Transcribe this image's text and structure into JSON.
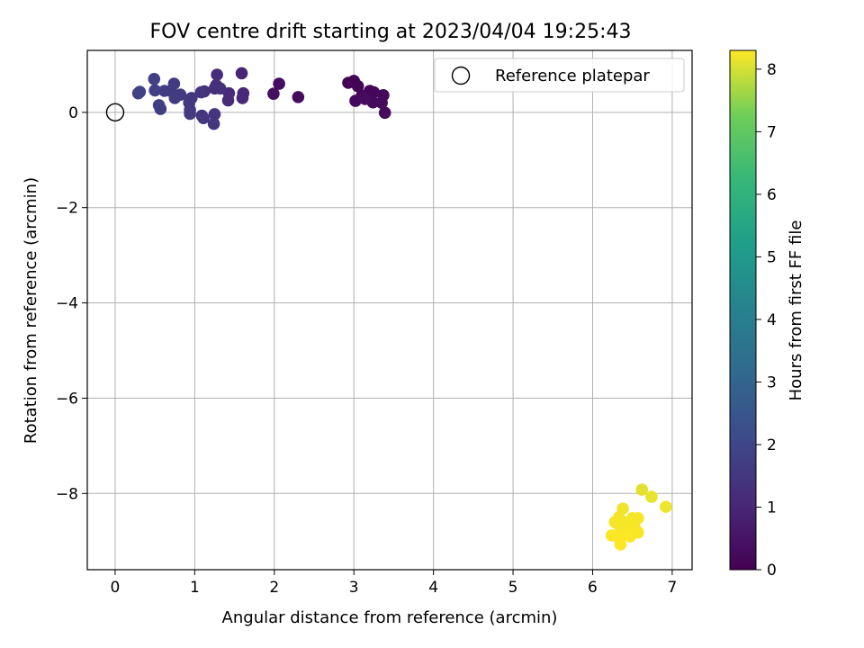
{
  "chart_data": {
    "type": "scatter",
    "title": "FOV centre drift starting at 2023/04/04 19:25:43",
    "xlabel": "Angular distance from reference (arcmin)",
    "ylabel": "Rotation from reference (arcmin)",
    "xlim": [
      -0.35,
      7.25
    ],
    "ylim": [
      -9.6,
      1.3
    ],
    "xticks": [
      0,
      1,
      2,
      3,
      4,
      5,
      6,
      7
    ],
    "yticks": [
      0,
      -2,
      -4,
      -6,
      -8
    ],
    "xtick_labels": [
      "0",
      "1",
      "2",
      "3",
      "4",
      "5",
      "6",
      "7"
    ],
    "ytick_labels": [
      "0",
      "−2",
      "−4",
      "−6",
      "−8"
    ],
    "grid": true,
    "legend": {
      "position": "top-right",
      "label": "Reference platepar"
    },
    "reference_point": {
      "x": 0,
      "y": 0
    },
    "colorbar": {
      "label": "Hours from first FF file",
      "range": [
        0,
        8.3
      ],
      "ticks": [
        0,
        1,
        2,
        3,
        4,
        5,
        6,
        7,
        8
      ],
      "tick_labels": [
        "0",
        "1",
        "2",
        "3",
        "4",
        "5",
        "6",
        "7",
        "8"
      ],
      "colormap": "viridis"
    },
    "points": [
      {
        "x": 2.93,
        "y": 0.62,
        "c": 0.05
      },
      {
        "x": 3.0,
        "y": 0.66,
        "c": 0.07
      },
      {
        "x": 3.05,
        "y": 0.55,
        "c": 0.1
      },
      {
        "x": 3.2,
        "y": 0.45,
        "c": 0.12
      },
      {
        "x": 3.25,
        "y": 0.42,
        "c": 0.14
      },
      {
        "x": 3.1,
        "y": 0.35,
        "c": 0.16
      },
      {
        "x": 3.37,
        "y": 0.36,
        "c": 0.18
      },
      {
        "x": 3.02,
        "y": 0.24,
        "c": 0.2
      },
      {
        "x": 3.24,
        "y": 0.21,
        "c": 0.22
      },
      {
        "x": 3.35,
        "y": 0.2,
        "c": 0.24
      },
      {
        "x": 3.39,
        "y": -0.01,
        "c": 0.26
      },
      {
        "x": 3.14,
        "y": 0.28,
        "c": 0.28
      },
      {
        "x": 2.3,
        "y": 0.32,
        "c": 0.3
      },
      {
        "x": 2.06,
        "y": 0.6,
        "c": 0.35
      },
      {
        "x": 1.99,
        "y": 0.39,
        "c": 0.4
      },
      {
        "x": 1.59,
        "y": 0.82,
        "c": 0.95
      },
      {
        "x": 1.61,
        "y": 0.4,
        "c": 1.0
      },
      {
        "x": 1.6,
        "y": 0.3,
        "c": 1.05
      },
      {
        "x": 1.43,
        "y": 0.4,
        "c": 1.1
      },
      {
        "x": 1.42,
        "y": 0.25,
        "c": 1.15
      },
      {
        "x": 1.28,
        "y": 0.79,
        "c": 1.2
      },
      {
        "x": 1.27,
        "y": 0.57,
        "c": 1.25
      },
      {
        "x": 1.32,
        "y": 0.5,
        "c": 1.3
      },
      {
        "x": 1.25,
        "y": 0.5,
        "c": 1.3
      },
      {
        "x": 1.12,
        "y": 0.44,
        "c": 1.35
      },
      {
        "x": 1.08,
        "y": 0.42,
        "c": 1.4
      },
      {
        "x": 1.25,
        "y": -0.04,
        "c": 1.4
      },
      {
        "x": 1.24,
        "y": -0.24,
        "c": 1.45
      },
      {
        "x": 1.09,
        "y": -0.07,
        "c": 1.45
      },
      {
        "x": 1.11,
        "y": -0.12,
        "c": 1.5
      },
      {
        "x": 0.96,
        "y": 0.3,
        "c": 1.5
      },
      {
        "x": 0.93,
        "y": 0.2,
        "c": 1.55
      },
      {
        "x": 0.94,
        "y": 0.05,
        "c": 1.55
      },
      {
        "x": 0.94,
        "y": -0.03,
        "c": 1.6
      },
      {
        "x": 0.82,
        "y": 0.37,
        "c": 1.6
      },
      {
        "x": 0.74,
        "y": 0.6,
        "c": 1.65
      },
      {
        "x": 0.7,
        "y": 0.45,
        "c": 1.65
      },
      {
        "x": 0.75,
        "y": 0.3,
        "c": 1.7
      },
      {
        "x": 0.62,
        "y": 0.45,
        "c": 1.7
      },
      {
        "x": 0.55,
        "y": 0.15,
        "c": 1.75
      },
      {
        "x": 0.57,
        "y": 0.07,
        "c": 1.75
      },
      {
        "x": 0.49,
        "y": 0.7,
        "c": 1.8
      },
      {
        "x": 0.5,
        "y": 0.46,
        "c": 1.8
      },
      {
        "x": 0.31,
        "y": 0.43,
        "c": 1.85
      },
      {
        "x": 0.29,
        "y": 0.4,
        "c": 1.85
      },
      {
        "x": 6.62,
        "y": -7.92,
        "c": 8.1
      },
      {
        "x": 6.74,
        "y": -8.07,
        "c": 8.15
      },
      {
        "x": 6.92,
        "y": -8.28,
        "c": 8.2
      },
      {
        "x": 6.38,
        "y": -8.32,
        "c": 8.2
      },
      {
        "x": 6.33,
        "y": -8.5,
        "c": 8.22
      },
      {
        "x": 6.5,
        "y": -8.52,
        "c": 8.22
      },
      {
        "x": 6.57,
        "y": -8.52,
        "c": 8.24
      },
      {
        "x": 6.44,
        "y": -8.6,
        "c": 8.24
      },
      {
        "x": 6.28,
        "y": -8.6,
        "c": 8.25
      },
      {
        "x": 6.35,
        "y": -8.72,
        "c": 8.25
      },
      {
        "x": 6.53,
        "y": -8.72,
        "c": 8.26
      },
      {
        "x": 6.47,
        "y": -8.78,
        "c": 8.26
      },
      {
        "x": 6.57,
        "y": -8.82,
        "c": 8.27
      },
      {
        "x": 6.41,
        "y": -8.85,
        "c": 8.27
      },
      {
        "x": 6.24,
        "y": -8.88,
        "c": 8.28
      },
      {
        "x": 6.47,
        "y": -8.9,
        "c": 8.28
      },
      {
        "x": 6.33,
        "y": -8.93,
        "c": 8.29
      },
      {
        "x": 6.35,
        "y": -9.07,
        "c": 8.3
      }
    ]
  }
}
